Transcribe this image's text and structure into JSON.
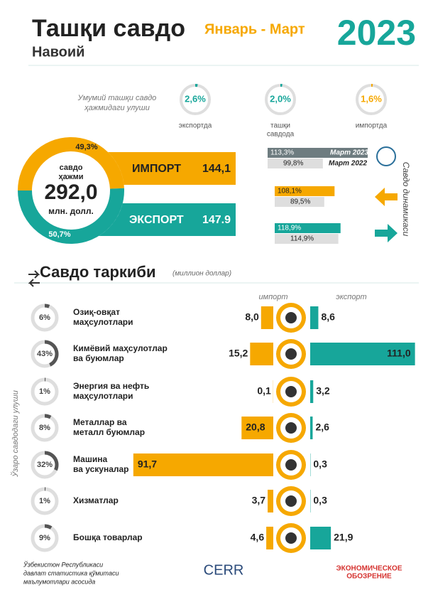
{
  "header": {
    "title": "Ташқи савдо",
    "region": "Навоий",
    "period": "Январь - Март",
    "year": "2023"
  },
  "shares": {
    "caption": [
      "Умумий ташқи савдо",
      "ҳажмидаги улуши"
    ],
    "items": [
      {
        "value": 2.6,
        "label": "2,6%",
        "name": [
          "экспортда"
        ]
      },
      {
        "value": 2.0,
        "label": "2,0%",
        "name": [
          "ташқи",
          "савдода"
        ]
      },
      {
        "value": 1.6,
        "label": "1,6%",
        "name": [
          "импортда"
        ]
      }
    ]
  },
  "volume": {
    "caption": [
      "савдо",
      "ҳажми"
    ],
    "total": "292,0",
    "unit": "млн. долл.",
    "import_share": 49.3,
    "import_share_label": "49,3%",
    "export_share": 50.7,
    "export_share_label": "50,7%",
    "import_name": "ИМПОРТ",
    "import_value": "144,1",
    "export_name": "ЭКСПОРТ",
    "export_value": "147.9"
  },
  "dynamics": {
    "title": "Савдо динамикаси",
    "legend": [
      "Март 2023",
      "Март 2022"
    ],
    "pairs": [
      {
        "current": 113.3,
        "current_label": "113,3%",
        "previous": 99.8,
        "previous_label": "99,8%"
      },
      {
        "current": 108.1,
        "current_label": "108,1%",
        "previous": 89.5,
        "previous_label": "89,5%"
      },
      {
        "current": 118.9,
        "current_label": "118,9%",
        "previous": 114.9,
        "previous_label": "114,9%"
      }
    ]
  },
  "structure": {
    "title": "Савдо таркиби",
    "unit": "(миллион доллар)",
    "import_header": "импорт",
    "export_header": "экспорт",
    "share_axis": "Ўзаро савдодаги улуши",
    "rows": [
      {
        "name": [
          "Озиқ-овқат",
          "маҳсулотлари"
        ],
        "share": 6,
        "share_label": "6%",
        "import": 8.0,
        "import_label": "8,0",
        "export": 8.6,
        "export_label": "8,6"
      },
      {
        "name": [
          "Кимёвий маҳсулотлар",
          "ва буюмлар"
        ],
        "share": 43,
        "share_label": "43%",
        "import": 15.2,
        "import_label": "15,2",
        "export": 111.0,
        "export_label": "111,0"
      },
      {
        "name": [
          "Энергия ва нефть",
          "маҳсулотлари"
        ],
        "share": 1,
        "share_label": "1%",
        "import": 0.1,
        "import_label": "0,1",
        "export": 3.2,
        "export_label": "3,2"
      },
      {
        "name": [
          "Металлар ва",
          "металл буюмлар"
        ],
        "share": 8,
        "share_label": "8%",
        "import": 20.8,
        "import_label": "20,8",
        "export": 2.6,
        "export_label": "2,6"
      },
      {
        "name": [
          "Машина",
          "ва ускуналар"
        ],
        "share": 32,
        "share_label": "32%",
        "import": 91.7,
        "import_label": "91,7",
        "export": 0.3,
        "export_label": "0,3"
      },
      {
        "name": [
          "Хизматлар"
        ],
        "share": 1,
        "share_label": "1%",
        "import": 3.7,
        "import_label": "3,7",
        "export": 0.3,
        "export_label": "0,3"
      },
      {
        "name": [
          "Бошқа товарлар"
        ],
        "share": 9,
        "share_label": "9%",
        "import": 4.6,
        "import_label": "4,6",
        "export": 21.9,
        "export_label": "21,9"
      }
    ]
  },
  "footer": {
    "source": [
      "Ўзбекистон Республикаси",
      "давлат статистика қўмитаси",
      "маълумотлари асосида"
    ],
    "logo_left": "CERR",
    "logo_right": [
      "ЭКОНОМИЧЕСКОЕ",
      "ОБОЗРЕНИЕ"
    ]
  }
}
